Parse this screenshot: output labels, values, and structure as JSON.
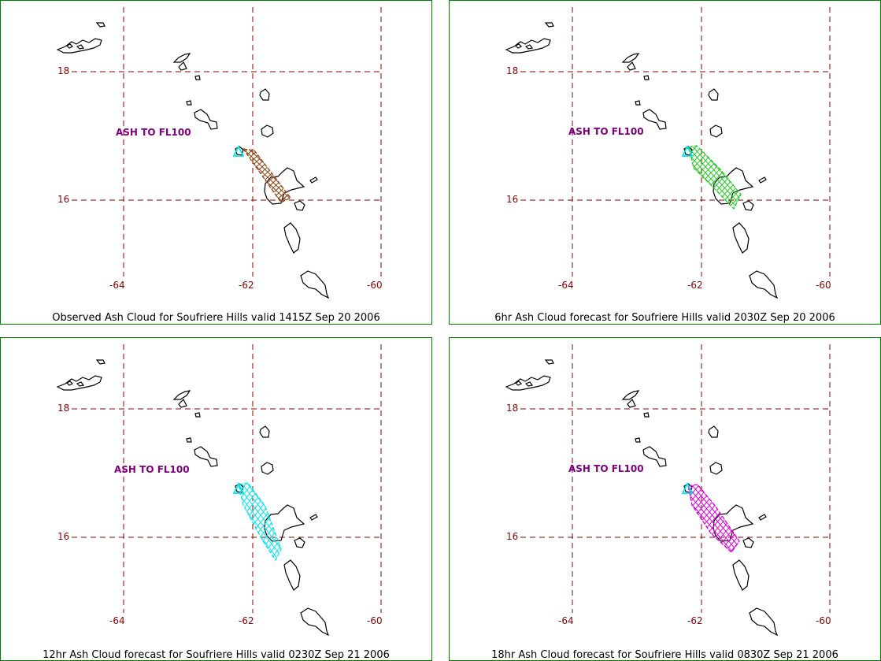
{
  "panels": [
    {
      "caption": "Observed Ash Cloud for Soufriere  Hills valid 1415Z Sep 20 2006",
      "ash_label": "ASH TO FL100",
      "plume_color": "#8B4513"
    },
    {
      "caption": "6hr Ash Cloud forecast for Soufriere  Hills valid 2030Z Sep 20 2006",
      "ash_label": "ASH TO FL100",
      "plume_color": "#22CC22"
    },
    {
      "caption": "12hr Ash Cloud forecast for Soufriere  Hills valid 0230Z Sep 21 2006",
      "ash_label": "ASH TO FL100",
      "plume_color": "#00E5EE"
    },
    {
      "caption": "18hr Ash Cloud forecast for Soufriere  Hills valid 0830Z Sep 21 2006",
      "ash_label": "ASH TO FL100",
      "plume_color": "#DD00DD"
    }
  ],
  "grid": {
    "lat_labels": [
      "18",
      "16"
    ],
    "lon_labels": [
      "-64",
      "-62",
      "-60"
    ],
    "grid_color": "#8B0000"
  },
  "volcano_marker_color": "#00E5EE",
  "coast_color": "#000000"
}
